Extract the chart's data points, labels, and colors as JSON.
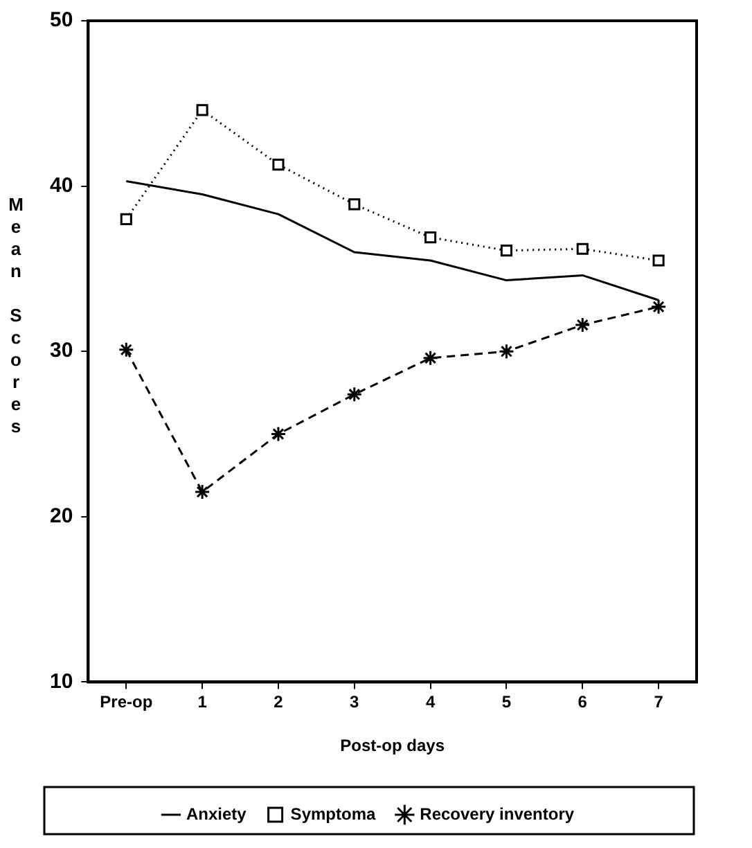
{
  "chart_data": {
    "type": "line",
    "xlabel": "Post-op days",
    "ylabel": "Mean Scores",
    "categories": [
      "Pre-op",
      "1",
      "2",
      "3",
      "4",
      "5",
      "6",
      "7"
    ],
    "series": [
      {
        "name": "Anxiety",
        "color": "#000000",
        "marker": "none",
        "line_style": "solid",
        "values": [
          40.3,
          39.5,
          38.3,
          36.0,
          35.5,
          34.3,
          34.6,
          33.1
        ]
      },
      {
        "name": "Symptoma",
        "color": "#000000",
        "marker": "square",
        "line_style": "dotted",
        "values": [
          38.0,
          44.6,
          41.3,
          38.9,
          36.9,
          36.1,
          36.2,
          35.5
        ]
      },
      {
        "name": "Recovery inventory",
        "color": "#000000",
        "marker": "cross",
        "line_style": "dashed",
        "values": [
          30.1,
          21.5,
          25.0,
          27.4,
          29.6,
          30.0,
          31.6,
          32.7
        ]
      }
    ],
    "ylim": [
      10,
      50
    ],
    "yticks": [
      10,
      20,
      30,
      40,
      50
    ],
    "grid": false,
    "legend": "bottom"
  }
}
